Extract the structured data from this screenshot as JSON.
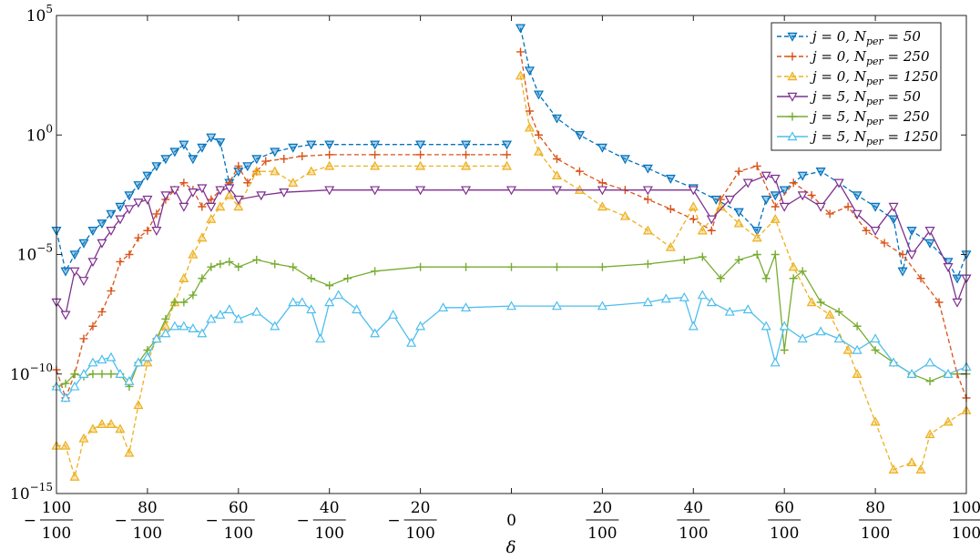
{
  "chart_data": {
    "type": "line",
    "xlabel": "δ",
    "ylabel": "",
    "yscale": "log",
    "ylim": [
      1e-15,
      100000.0
    ],
    "xlim": [
      -1,
      1
    ],
    "grid": false,
    "legend_position": "top-right",
    "y_ticks": [
      {
        "value": 1e-15,
        "base": "10",
        "exp": "−15"
      },
      {
        "value": 1e-10,
        "base": "10",
        "exp": "−10"
      },
      {
        "value": 1e-05,
        "base": "10",
        "exp": "−5"
      },
      {
        "value": 1,
        "base": "10",
        "exp": "0"
      },
      {
        "value": 100000.0,
        "base": "10",
        "exp": "5"
      }
    ],
    "x_ticks": [
      {
        "value": -1.0,
        "sign": "−",
        "num": "100",
        "den": "100"
      },
      {
        "value": -0.8,
        "sign": "−",
        "num": "80",
        "den": "100"
      },
      {
        "value": -0.6,
        "sign": "−",
        "num": "60",
        "den": "100"
      },
      {
        "value": -0.4,
        "sign": "−",
        "num": "40",
        "den": "100"
      },
      {
        "value": -0.2,
        "sign": "−",
        "num": "20",
        "den": "100"
      },
      {
        "value": 0.0,
        "sign": "",
        "num": "0",
        "den": ""
      },
      {
        "value": 0.2,
        "sign": "",
        "num": "20",
        "den": "100"
      },
      {
        "value": 0.4,
        "sign": "",
        "num": "40",
        "den": "100"
      },
      {
        "value": 0.6,
        "sign": "",
        "num": "60",
        "den": "100"
      },
      {
        "value": 0.8,
        "sign": "",
        "num": "80",
        "den": "100"
      },
      {
        "value": 1.0,
        "sign": "",
        "num": "100",
        "den": "100"
      }
    ],
    "series": [
      {
        "name": "j = 0, N_per = 50",
        "label_main": "j = 0, N",
        "label_sub": "per",
        "label_tail": " = 50",
        "color": "#0072BD",
        "dash": true,
        "marker": "triangle-down",
        "filled": true,
        "x": [
          -1.0,
          -0.98,
          -0.96,
          -0.94,
          -0.92,
          -0.9,
          -0.88,
          -0.86,
          -0.84,
          -0.82,
          -0.8,
          -0.78,
          -0.76,
          -0.74,
          -0.72,
          -0.7,
          -0.68,
          -0.66,
          -0.64,
          -0.62,
          -0.6,
          -0.58,
          -0.56,
          -0.52,
          -0.48,
          -0.44,
          -0.4,
          -0.3,
          -0.2,
          -0.1,
          -0.01,
          0.02,
          0.04,
          0.06,
          0.1,
          0.15,
          0.2,
          0.25,
          0.3,
          0.35,
          0.4,
          0.45,
          0.5,
          0.54,
          0.56,
          0.58,
          0.6,
          0.64,
          0.68,
          0.72,
          0.76,
          0.8,
          0.84,
          0.86,
          0.88,
          0.92,
          0.96,
          0.98,
          1.0
        ],
        "y": [
          0.0001,
          2e-06,
          1e-05,
          3e-05,
          0.0001,
          0.0002,
          0.0005,
          0.001,
          0.003,
          0.008,
          0.02,
          0.05,
          0.1,
          0.2,
          0.4,
          0.1,
          0.3,
          0.8,
          0.5,
          0.01,
          0.03,
          0.05,
          0.1,
          0.2,
          0.3,
          0.4,
          0.4,
          0.4,
          0.4,
          0.4,
          0.4,
          30000.0,
          500.0,
          50,
          5,
          1,
          0.3,
          0.1,
          0.04,
          0.015,
          0.006,
          0.002,
          0.0006,
          0.0001,
          0.002,
          0.003,
          0.005,
          0.02,
          0.03,
          0.01,
          0.003,
          0.001,
          0.0003,
          2e-06,
          0.0001,
          3e-05,
          5e-06,
          1e-06,
          1e-05
        ]
      },
      {
        "name": "j = 0, N_per = 250",
        "label_main": "j = 0, N",
        "label_sub": "per",
        "label_tail": " = 250",
        "color": "#D95319",
        "dash": true,
        "marker": "plus",
        "filled": false,
        "x": [
          -1.0,
          -0.98,
          -0.96,
          -0.94,
          -0.92,
          -0.9,
          -0.88,
          -0.86,
          -0.84,
          -0.82,
          -0.8,
          -0.78,
          -0.76,
          -0.74,
          -0.72,
          -0.7,
          -0.68,
          -0.66,
          -0.64,
          -0.62,
          -0.6,
          -0.58,
          -0.56,
          -0.54,
          -0.5,
          -0.46,
          -0.4,
          -0.3,
          -0.2,
          -0.1,
          -0.01,
          0.02,
          0.04,
          0.06,
          0.1,
          0.15,
          0.2,
          0.25,
          0.3,
          0.35,
          0.4,
          0.44,
          0.46,
          0.5,
          0.54,
          0.58,
          0.62,
          0.66,
          0.7,
          0.74,
          0.78,
          0.82,
          0.86,
          0.9,
          0.94,
          0.98,
          1.0
        ],
        "y": [
          1.5e-10,
          1e-11,
          1e-10,
          3e-09,
          1e-08,
          4e-08,
          3e-07,
          5e-06,
          1e-05,
          5e-05,
          0.0001,
          0.0005,
          0.002,
          0.005,
          0.01,
          0.005,
          0.001,
          0.002,
          0.005,
          0.01,
          0.05,
          0.01,
          0.03,
          0.08,
          0.1,
          0.13,
          0.15,
          0.15,
          0.15,
          0.15,
          0.15,
          3000.0,
          10,
          1,
          0.1,
          0.03,
          0.01,
          0.005,
          0.002,
          0.0008,
          0.0003,
          0.0001,
          0.002,
          0.03,
          0.05,
          0.001,
          0.01,
          0.003,
          0.0005,
          0.001,
          0.0001,
          3e-05,
          1e-05,
          1e-06,
          1e-07,
          1e-10,
          1e-11
        ]
      },
      {
        "name": "j = 0, N_per = 1250",
        "label_main": "j = 0, N",
        "label_sub": "per",
        "label_tail": " = 1250",
        "color": "#EDB120",
        "dash": true,
        "marker": "triangle-up",
        "filled": true,
        "x": [
          -1.0,
          -0.98,
          -0.96,
          -0.94,
          -0.92,
          -0.9,
          -0.88,
          -0.86,
          -0.84,
          -0.82,
          -0.8,
          -0.78,
          -0.76,
          -0.74,
          -0.72,
          -0.7,
          -0.68,
          -0.66,
          -0.64,
          -0.62,
          -0.6,
          -0.56,
          -0.52,
          -0.48,
          -0.44,
          -0.4,
          -0.3,
          -0.2,
          -0.1,
          -0.01,
          0.02,
          0.04,
          0.06,
          0.1,
          0.15,
          0.2,
          0.25,
          0.3,
          0.35,
          0.4,
          0.42,
          0.46,
          0.5,
          0.54,
          0.58,
          0.62,
          0.66,
          0.7,
          0.74,
          0.76,
          0.8,
          0.84,
          0.88,
          0.9,
          0.92,
          0.96,
          1.0
        ],
        "y": [
          1e-13,
          1e-13,
          5e-15,
          2e-13,
          5e-13,
          8e-13,
          8e-13,
          5e-13,
          5e-14,
          5e-12,
          3e-10,
          3e-09,
          1e-08,
          1e-07,
          1e-06,
          1e-05,
          5e-05,
          0.0003,
          0.001,
          0.003,
          0.001,
          0.03,
          0.03,
          0.01,
          0.03,
          0.05,
          0.05,
          0.05,
          0.05,
          0.05,
          300.0,
          2,
          0.2,
          0.02,
          0.005,
          0.001,
          0.0004,
          0.0001,
          2e-05,
          0.001,
          0.0001,
          0.001,
          0.0002,
          5e-05,
          0.0003,
          3e-06,
          1e-07,
          3e-08,
          1e-09,
          1e-10,
          1e-12,
          1e-14,
          2e-14,
          1e-14,
          3e-13,
          1e-12,
          3e-12
        ]
      },
      {
        "name": "j = 5, N_per = 50",
        "label_main": "j = 5, N",
        "label_sub": "per",
        "label_tail": " = 50",
        "color": "#7E2F8E",
        "dash": false,
        "marker": "triangle-down",
        "filled": false,
        "x": [
          -1.0,
          -0.98,
          -0.96,
          -0.94,
          -0.92,
          -0.9,
          -0.88,
          -0.86,
          -0.84,
          -0.82,
          -0.8,
          -0.78,
          -0.76,
          -0.74,
          -0.72,
          -0.7,
          -0.68,
          -0.66,
          -0.64,
          -0.62,
          -0.6,
          -0.55,
          -0.5,
          -0.4,
          -0.3,
          -0.2,
          -0.1,
          0.0,
          0.1,
          0.2,
          0.3,
          0.4,
          0.44,
          0.48,
          0.52,
          0.56,
          0.58,
          0.6,
          0.64,
          0.68,
          0.72,
          0.76,
          0.8,
          0.84,
          0.88,
          0.92,
          0.96,
          0.98,
          1.0
        ],
        "y": [
          1e-07,
          3e-08,
          2e-06,
          8e-07,
          5e-06,
          3e-05,
          0.0001,
          0.0003,
          0.0008,
          0.0015,
          0.002,
          0.0001,
          0.003,
          0.005,
          0.001,
          0.004,
          0.006,
          0.001,
          0.005,
          0.006,
          0.002,
          0.003,
          0.004,
          0.005,
          0.005,
          0.005,
          0.005,
          0.005,
          0.005,
          0.005,
          0.005,
          0.005,
          0.0003,
          0.002,
          0.01,
          0.02,
          0.015,
          0.001,
          0.003,
          0.001,
          0.01,
          0.0005,
          0.0001,
          0.001,
          1e-05,
          0.0001,
          3e-06,
          1e-07,
          1e-06
        ]
      },
      {
        "name": "j = 5, N_per = 250",
        "label_main": "j = 5, N",
        "label_sub": "per",
        "label_tail": " = 250",
        "color": "#77AC30",
        "dash": false,
        "marker": "plus",
        "filled": false,
        "x": [
          -1.0,
          -0.98,
          -0.96,
          -0.94,
          -0.92,
          -0.9,
          -0.88,
          -0.86,
          -0.84,
          -0.82,
          -0.8,
          -0.78,
          -0.76,
          -0.74,
          -0.72,
          -0.7,
          -0.68,
          -0.66,
          -0.64,
          -0.62,
          -0.6,
          -0.56,
          -0.52,
          -0.48,
          -0.44,
          -0.4,
          -0.36,
          -0.3,
          -0.2,
          -0.1,
          0.0,
          0.1,
          0.2,
          0.3,
          0.38,
          0.42,
          0.46,
          0.5,
          0.54,
          0.56,
          0.58,
          0.6,
          0.62,
          0.64,
          0.68,
          0.72,
          0.76,
          0.8,
          0.84,
          0.88,
          0.92,
          0.96,
          1.0
        ],
        "y": [
          3e-11,
          4e-11,
          1e-10,
          8e-11,
          1e-10,
          1e-10,
          1e-10,
          1e-10,
          3e-11,
          3e-10,
          1e-09,
          3e-09,
          2e-08,
          1e-07,
          1e-07,
          2e-07,
          1e-06,
          3e-06,
          4e-06,
          5e-06,
          3e-06,
          6e-06,
          4e-06,
          3e-06,
          1e-06,
          5e-07,
          1e-06,
          2e-06,
          3e-06,
          3e-06,
          3e-06,
          3e-06,
          3e-06,
          4e-06,
          6e-06,
          8e-06,
          1e-06,
          6e-06,
          1e-05,
          1e-06,
          1e-05,
          1e-09,
          1e-06,
          2e-06,
          1e-07,
          4e-08,
          1e-08,
          1e-09,
          3e-10,
          1e-10,
          5e-11,
          1e-10,
          1e-10
        ]
      },
      {
        "name": "j = 5, N_per = 1250",
        "label_main": "j = 5, N",
        "label_sub": "per",
        "label_tail": " = 1250",
        "color": "#4DBEEE",
        "dash": false,
        "marker": "triangle-up",
        "filled": false,
        "x": [
          -1.0,
          -0.98,
          -0.96,
          -0.94,
          -0.92,
          -0.9,
          -0.88,
          -0.86,
          -0.84,
          -0.82,
          -0.8,
          -0.78,
          -0.76,
          -0.74,
          -0.72,
          -0.7,
          -0.68,
          -0.66,
          -0.64,
          -0.62,
          -0.6,
          -0.56,
          -0.52,
          -0.48,
          -0.46,
          -0.44,
          -0.42,
          -0.4,
          -0.38,
          -0.34,
          -0.3,
          -0.26,
          -0.22,
          -0.2,
          -0.15,
          -0.1,
          0.0,
          0.1,
          0.2,
          0.3,
          0.34,
          0.38,
          0.4,
          0.42,
          0.44,
          0.48,
          0.52,
          0.56,
          0.58,
          0.6,
          0.64,
          0.68,
          0.72,
          0.76,
          0.8,
          0.84,
          0.88,
          0.92,
          0.96,
          1.0
        ],
        "y": [
          3e-11,
          1e-11,
          3e-11,
          1e-10,
          3e-10,
          4e-10,
          5e-10,
          1e-10,
          5e-11,
          3e-10,
          5e-10,
          3e-09,
          5e-09,
          1e-08,
          1e-08,
          8e-09,
          5e-09,
          2e-08,
          3e-08,
          5e-08,
          2e-08,
          4e-08,
          1e-08,
          1e-07,
          1e-07,
          5e-08,
          3e-09,
          1e-07,
          2e-07,
          5e-08,
          5e-09,
          3e-08,
          2e-09,
          1e-08,
          6e-08,
          6e-08,
          7e-08,
          7e-08,
          7e-08,
          1e-07,
          1.4e-07,
          1.6e-07,
          1e-08,
          2e-07,
          1e-07,
          4e-08,
          5e-08,
          1e-08,
          3e-10,
          1e-08,
          3e-09,
          6e-09,
          3e-09,
          1e-09,
          3e-09,
          3e-10,
          1e-10,
          3e-10,
          1e-10,
          2e-10
        ]
      }
    ]
  }
}
